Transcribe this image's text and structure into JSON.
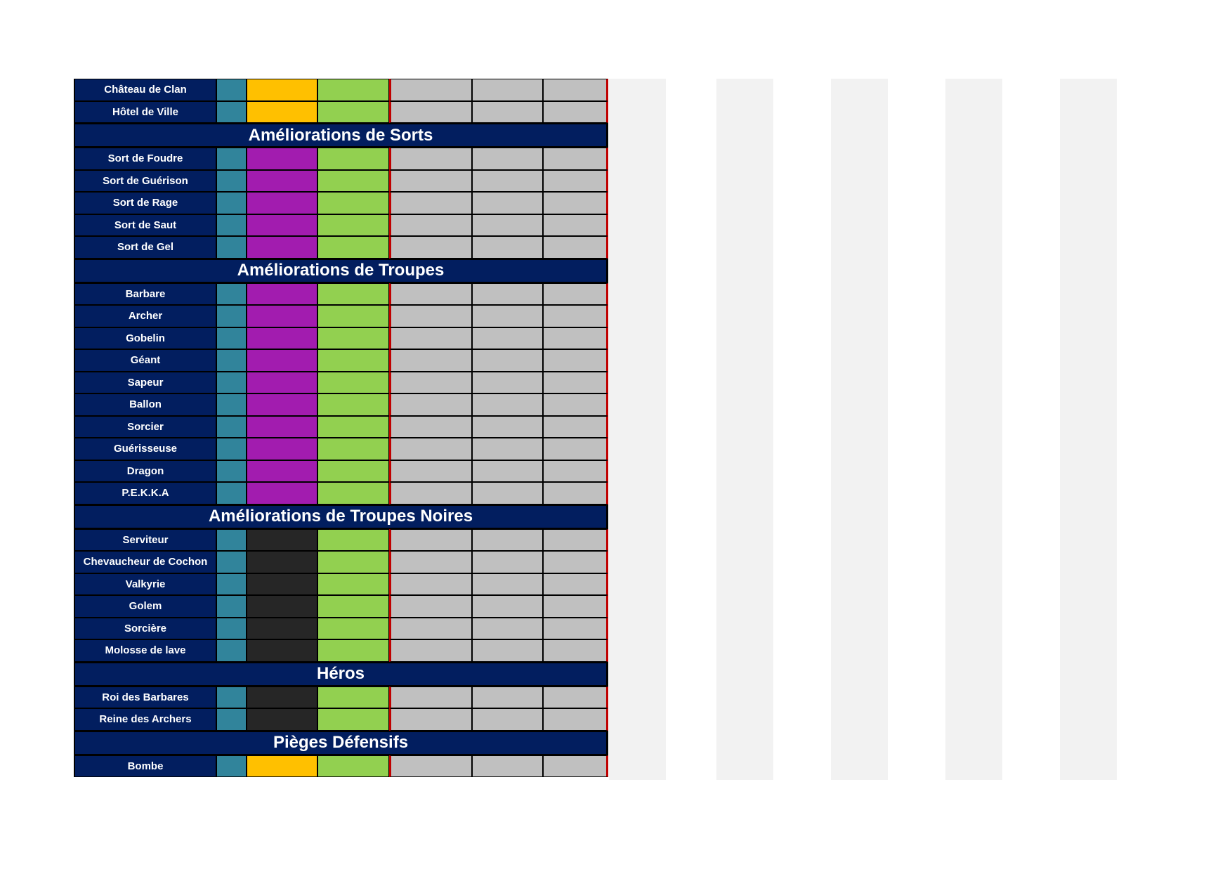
{
  "colors": {
    "navy": "#021e5f",
    "teal": "#31849b",
    "gold": "#ffc000",
    "elixir": "#a21caf",
    "dark_elixir": "#262626",
    "green": "#92d050",
    "grey": "#c0c0c0",
    "red_border": "#c00000"
  },
  "blocks": [
    {
      "type": "rows",
      "resource": "gold",
      "rows": [
        "Château de Clan",
        "Hôtel de Ville"
      ]
    },
    {
      "type": "section",
      "title": "Améliorations de Sorts"
    },
    {
      "type": "rows",
      "resource": "elixir",
      "rows": [
        "Sort de Foudre",
        "Sort de Guérison",
        "Sort de Rage",
        "Sort de Saut",
        "Sort de Gel"
      ]
    },
    {
      "type": "section",
      "title": "Améliorations de Troupes"
    },
    {
      "type": "rows",
      "resource": "elixir",
      "rows": [
        "Barbare",
        "Archer",
        "Gobelin",
        "Géant",
        "Sapeur",
        "Ballon",
        "Sorcier",
        "Guérisseuse",
        "Dragon",
        "P.E.K.K.A"
      ]
    },
    {
      "type": "section",
      "title": "Améliorations de Troupes Noires"
    },
    {
      "type": "rows",
      "resource": "dark",
      "rows": [
        "Serviteur",
        "Chevaucheur de Cochon",
        "Valkyrie",
        "Golem",
        "Sorcière",
        "Molosse de lave"
      ]
    },
    {
      "type": "section",
      "title": "Héros"
    },
    {
      "type": "rows",
      "resource": "dark",
      "rows": [
        "Roi des Barbares",
        "Reine des Archers"
      ]
    },
    {
      "type": "section",
      "title": "Pièges Défensifs"
    },
    {
      "type": "rows",
      "resource": "gold",
      "rows": [
        "Bombe"
      ]
    }
  ]
}
